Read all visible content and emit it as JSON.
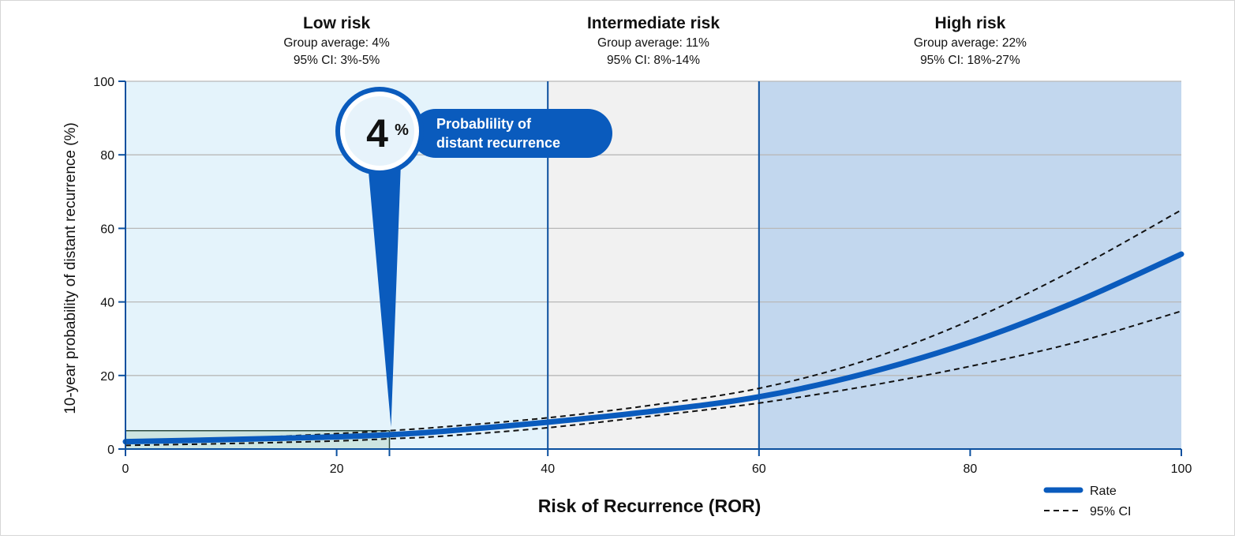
{
  "chart_data": {
    "type": "line",
    "xlabel": "Risk of Recurrence (ROR)",
    "ylabel": "10-year probability of distant recurrence (%)",
    "xlim": [
      0,
      100
    ],
    "ylim": [
      0,
      100
    ],
    "x_ticks": [
      0,
      20,
      40,
      60,
      80,
      100
    ],
    "y_ticks": [
      0,
      20,
      40,
      60,
      80,
      100
    ],
    "grid": "horizontal",
    "legend_placement": "bottom-right",
    "colors": {
      "rate": "#0a5bbd",
      "low_zone": "#e4f3fb",
      "intermediate_zone": "#f1f1f1",
      "high_zone": "#c2d7ee",
      "callout": "#0a5bbd",
      "highlight_box": "#b9d9cc"
    },
    "zones": [
      {
        "label": "Low risk",
        "from": 0,
        "to": 40,
        "group_average": "Group average: 4%",
        "ci": "95% CI: 3%-5%"
      },
      {
        "label": "Intermediate risk",
        "from": 40,
        "to": 60,
        "group_average": "Group average: 11%",
        "ci": "95% CI: 8%-14%"
      },
      {
        "label": "High risk",
        "from": 60,
        "to": 100,
        "group_average": "Group average: 22%",
        "ci": "95% CI: 18%-27%"
      }
    ],
    "series": [
      {
        "name": "Rate",
        "x": [
          0,
          10,
          20,
          25,
          30,
          40,
          50,
          60,
          70,
          80,
          90,
          100
        ],
        "y": [
          2,
          2.6,
          3.3,
          3.9,
          4.8,
          7.3,
          10.3,
          14.2,
          20.5,
          29,
          40,
          53
        ]
      },
      {
        "name": "95% CI",
        "x": [
          0,
          10,
          20,
          25,
          30,
          40,
          50,
          60,
          70,
          80,
          90,
          100
        ],
        "y": [
          1.5,
          2.8,
          4.2,
          5,
          6,
          8.5,
          12,
          16.5,
          24,
          35,
          49,
          65
        ]
      },
      {
        "x": [
          0,
          10,
          20,
          25,
          30,
          40,
          50,
          60,
          70,
          80,
          90,
          100
        ],
        "y": [
          1,
          1.5,
          2.2,
          2.8,
          3.5,
          5.8,
          9,
          12.5,
          17,
          22.5,
          29,
          37.5
        ]
      }
    ],
    "callout": {
      "x": 25,
      "y": 4,
      "value": "4",
      "unit": "%",
      "line1": "Probablility of",
      "line2": "distant recurrence"
    }
  }
}
